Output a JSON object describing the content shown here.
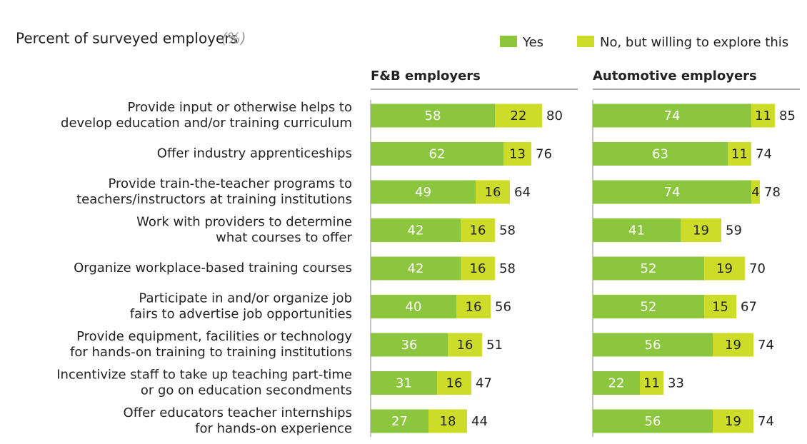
{
  "header": {
    "title": "Percent of surveyed employers",
    "unit": "(%)"
  },
  "chart_data": [
    {
      "type": "bar",
      "title": "F&B employers",
      "categories": [
        [
          "Provide input or otherwise helps to",
          "develop education and/or training curriculum"
        ],
        [
          "Offer industry apprenticeships"
        ],
        [
          "Provide train-the-teacher programs to",
          "teachers/instructors at training institutions"
        ],
        [
          "Work with providers to determine",
          "what courses to offer"
        ],
        [
          "Organize workplace-based training courses"
        ],
        [
          "Participate in and/or organize job",
          "fairs to advertise job opportunities"
        ],
        [
          "Provide equipment, facilities or technology",
          "for hands-on training to training institutions"
        ],
        [
          "Incentivize staff to take up teaching part-time",
          "or go on education secondments"
        ],
        [
          "Offer educators teacher internships",
          "for hands-on experience"
        ]
      ],
      "series": [
        {
          "name": "Yes",
          "color": "#8cc63f",
          "values": [
            58,
            62,
            49,
            42,
            42,
            40,
            36,
            31,
            27
          ]
        },
        {
          "name": "No, but willing to explore this",
          "color": "#cddc29",
          "values": [
            22,
            13,
            16,
            16,
            16,
            16,
            16,
            16,
            18
          ]
        }
      ],
      "totals": [
        80,
        76,
        64,
        58,
        58,
        56,
        51,
        47,
        44
      ]
    },
    {
      "type": "bar",
      "title": "Automotive employers",
      "series": [
        {
          "color": "#8cc63f",
          "values": [
            74,
            63,
            74,
            41,
            52,
            52,
            56,
            22,
            56
          ]
        },
        {
          "color": "#cddc29",
          "values": [
            11,
            11,
            4,
            19,
            19,
            15,
            19,
            11,
            19
          ]
        }
      ],
      "totals": [
        85,
        74,
        78,
        59,
        70,
        67,
        74,
        33,
        74
      ]
    }
  ]
}
